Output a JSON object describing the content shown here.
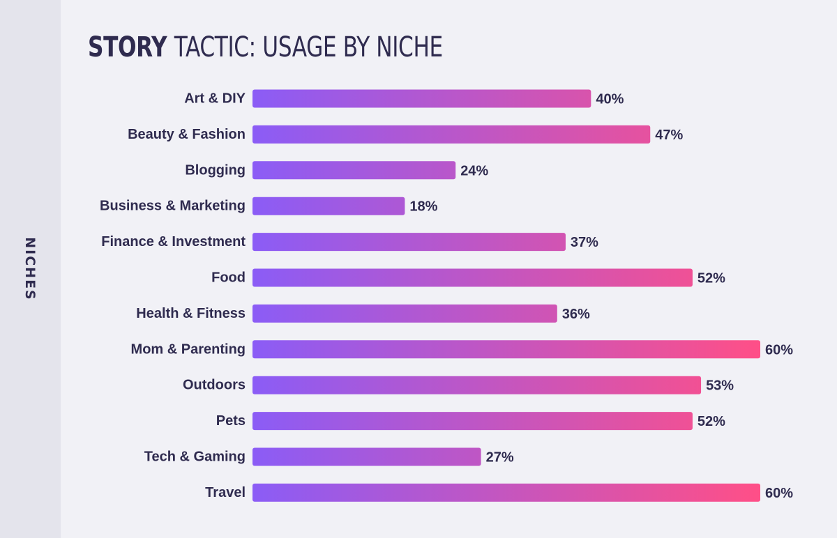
{
  "chart_data": {
    "type": "bar",
    "orientation": "horizontal",
    "title_strong": "STORY",
    "title_rest": "TACTIC: USAGE BY NICHE",
    "ylabel": "NICHES",
    "categories": [
      "Art & DIY",
      "Beauty & Fashion",
      "Blogging",
      "Business & Marketing",
      "Finance & Investment",
      "Food",
      "Health & Fitness",
      "Mom & Parenting",
      "Outdoors",
      "Pets",
      "Tech & Gaming",
      "Travel"
    ],
    "values": [
      40,
      47,
      24,
      18,
      37,
      52,
      36,
      60,
      53,
      52,
      27,
      60
    ],
    "value_labels": [
      "40%",
      "47%",
      "24%",
      "18%",
      "37%",
      "52%",
      "36%",
      "60%",
      "53%",
      "52%",
      "27%",
      "60%"
    ],
    "xlim": [
      0,
      60
    ],
    "grid": false,
    "colors": {
      "bar_start": "#8b5cf6",
      "bar_end": "#ff4f87",
      "text": "#2f2b4f",
      "background": "#f1f1f6",
      "side_strip": "#e4e4ec"
    }
  }
}
